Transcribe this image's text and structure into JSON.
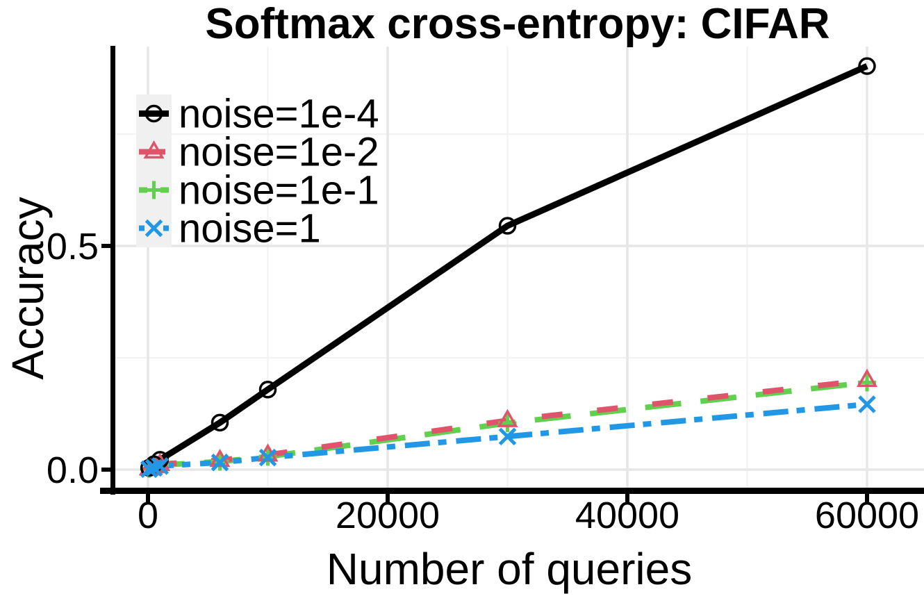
{
  "chart_data": {
    "type": "line",
    "title": "Softmax cross-entropy: CIFAR",
    "xlabel": "Number of queries",
    "ylabel": "Accuracy",
    "x": [
      100,
      500,
      1000,
      6000,
      10000,
      30000,
      60000
    ],
    "xlim": [
      -3000,
      64800
    ],
    "ylim": [
      -0.042,
      0.945
    ],
    "x_ticks": [
      0,
      20000,
      40000,
      60000
    ],
    "x_tick_labels": [
      "0",
      "20000",
      "40000",
      "60000"
    ],
    "x_minor_gridlines": [
      10000,
      30000,
      50000
    ],
    "y_ticks": [
      0.0,
      0.5
    ],
    "y_tick_labels": [
      "0.0",
      "0.5"
    ],
    "y_minor_gridlines": [
      0.25,
      0.75
    ],
    "grid": true,
    "legend_position": "top-left",
    "colors": {
      "major_grid": "#E6E6E6",
      "minor_grid": "#F2F2F2",
      "legend_key_bg": "#F0F0F0",
      "axis": "#000000"
    },
    "series": [
      {
        "label": "noise=1e-4",
        "color": "#000000",
        "linestyle": "solid",
        "marker": "circle",
        "values": [
          0.004,
          0.012,
          0.022,
          0.105,
          0.179,
          0.545,
          0.902
        ]
      },
      {
        "label": "noise=1e-2",
        "color": "#DF536B",
        "linestyle": "dashed",
        "marker": "triangle",
        "values": [
          0.002,
          0.007,
          0.012,
          0.021,
          0.033,
          0.11,
          0.2
        ]
      },
      {
        "label": "noise=1e-1",
        "color": "#61D04F",
        "linestyle": "dashed",
        "marker": "plus",
        "values": [
          0.002,
          0.006,
          0.01,
          0.018,
          0.029,
          0.104,
          0.195
        ]
      },
      {
        "label": "noise=1",
        "color": "#2297E6",
        "linestyle": "dashdot",
        "marker": "x",
        "values": [
          0.001,
          0.004,
          0.008,
          0.016,
          0.027,
          0.074,
          0.146
        ]
      }
    ]
  }
}
